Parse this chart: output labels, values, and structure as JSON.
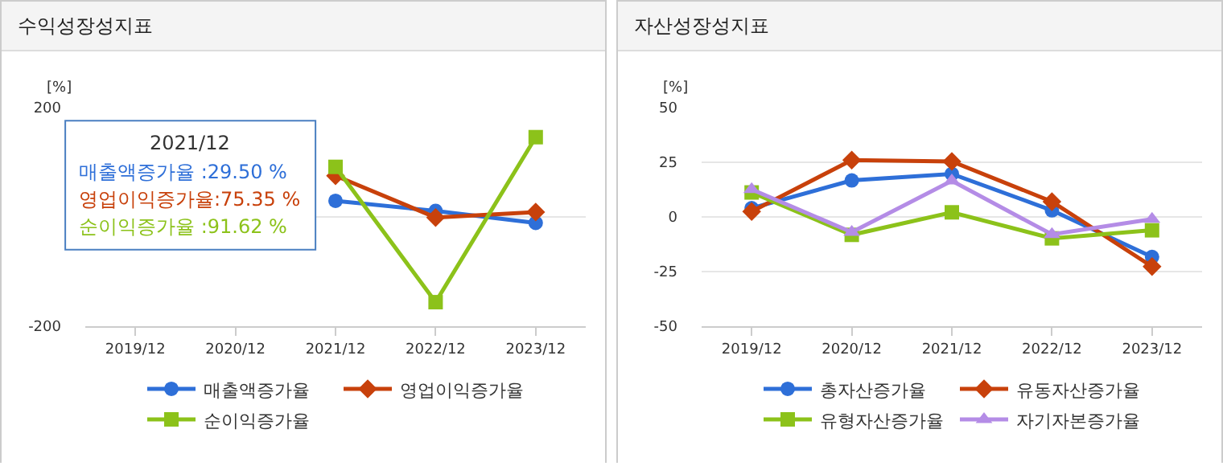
{
  "chart_data": [
    {
      "type": "line",
      "title": "수익성장성지표",
      "ylabel": "[%]",
      "categories": [
        "2019/12",
        "2020/12",
        "2021/12",
        "2022/12",
        "2023/12"
      ],
      "series": [
        {
          "name": "매출액증가율",
          "color": "#2e6fd8",
          "marker": "circle",
          "values": [
            null,
            null,
            29.5,
            11,
            -11
          ]
        },
        {
          "name": "영업이익증가율",
          "color": "#c8410b",
          "marker": "diamond",
          "values": [
            null,
            null,
            75.35,
            -1,
            9
          ]
        },
        {
          "name": "순이익증가율",
          "color": "#8cc21a",
          "marker": "square",
          "values": [
            null,
            null,
            91.62,
            -156,
            146
          ]
        }
      ],
      "ylim": [
        -200,
        200
      ],
      "yticks": [
        -200,
        {
          "value": 0,
          "label": null
        },
        200
      ],
      "grid": "y",
      "legend": "bottom",
      "line_style": "solid",
      "annotations": [
        "2021/12",
        "매출액증가율 :29.50 %",
        "영업이익증가율:75.35 %",
        "순이익증가율 :91.62 %"
      ]
    },
    {
      "type": "line",
      "title": "자산성장성지표",
      "ylabel": "[%]",
      "categories": [
        "2019/12",
        "2020/12",
        "2021/12",
        "2022/12",
        "2023/12"
      ],
      "series": [
        {
          "name": "총자산증가율",
          "color": "#2e6fd8",
          "marker": "circle",
          "values": [
            4,
            16.7,
            19.7,
            3,
            -18.3
          ]
        },
        {
          "name": "유동자산증가율",
          "color": "#c8410b",
          "marker": "diamond",
          "values": [
            2.5,
            26,
            25.4,
            7,
            -22.7
          ]
        },
        {
          "name": "유형자산증가율",
          "color": "#8cc21a",
          "marker": "square",
          "values": [
            11.2,
            -8.2,
            2.1,
            -9.8,
            -6.1
          ]
        },
        {
          "name": "자기자본증가율",
          "color": "#b48ce6",
          "marker": "triangle",
          "values": [
            12.6,
            -7,
            16.5,
            -8,
            -1
          ]
        }
      ],
      "ylim": [
        -50,
        50
      ],
      "yticks": [
        -50,
        -25,
        0,
        25,
        50
      ],
      "grid": "y",
      "legend": "bottom",
      "line_style": "solid"
    }
  ]
}
